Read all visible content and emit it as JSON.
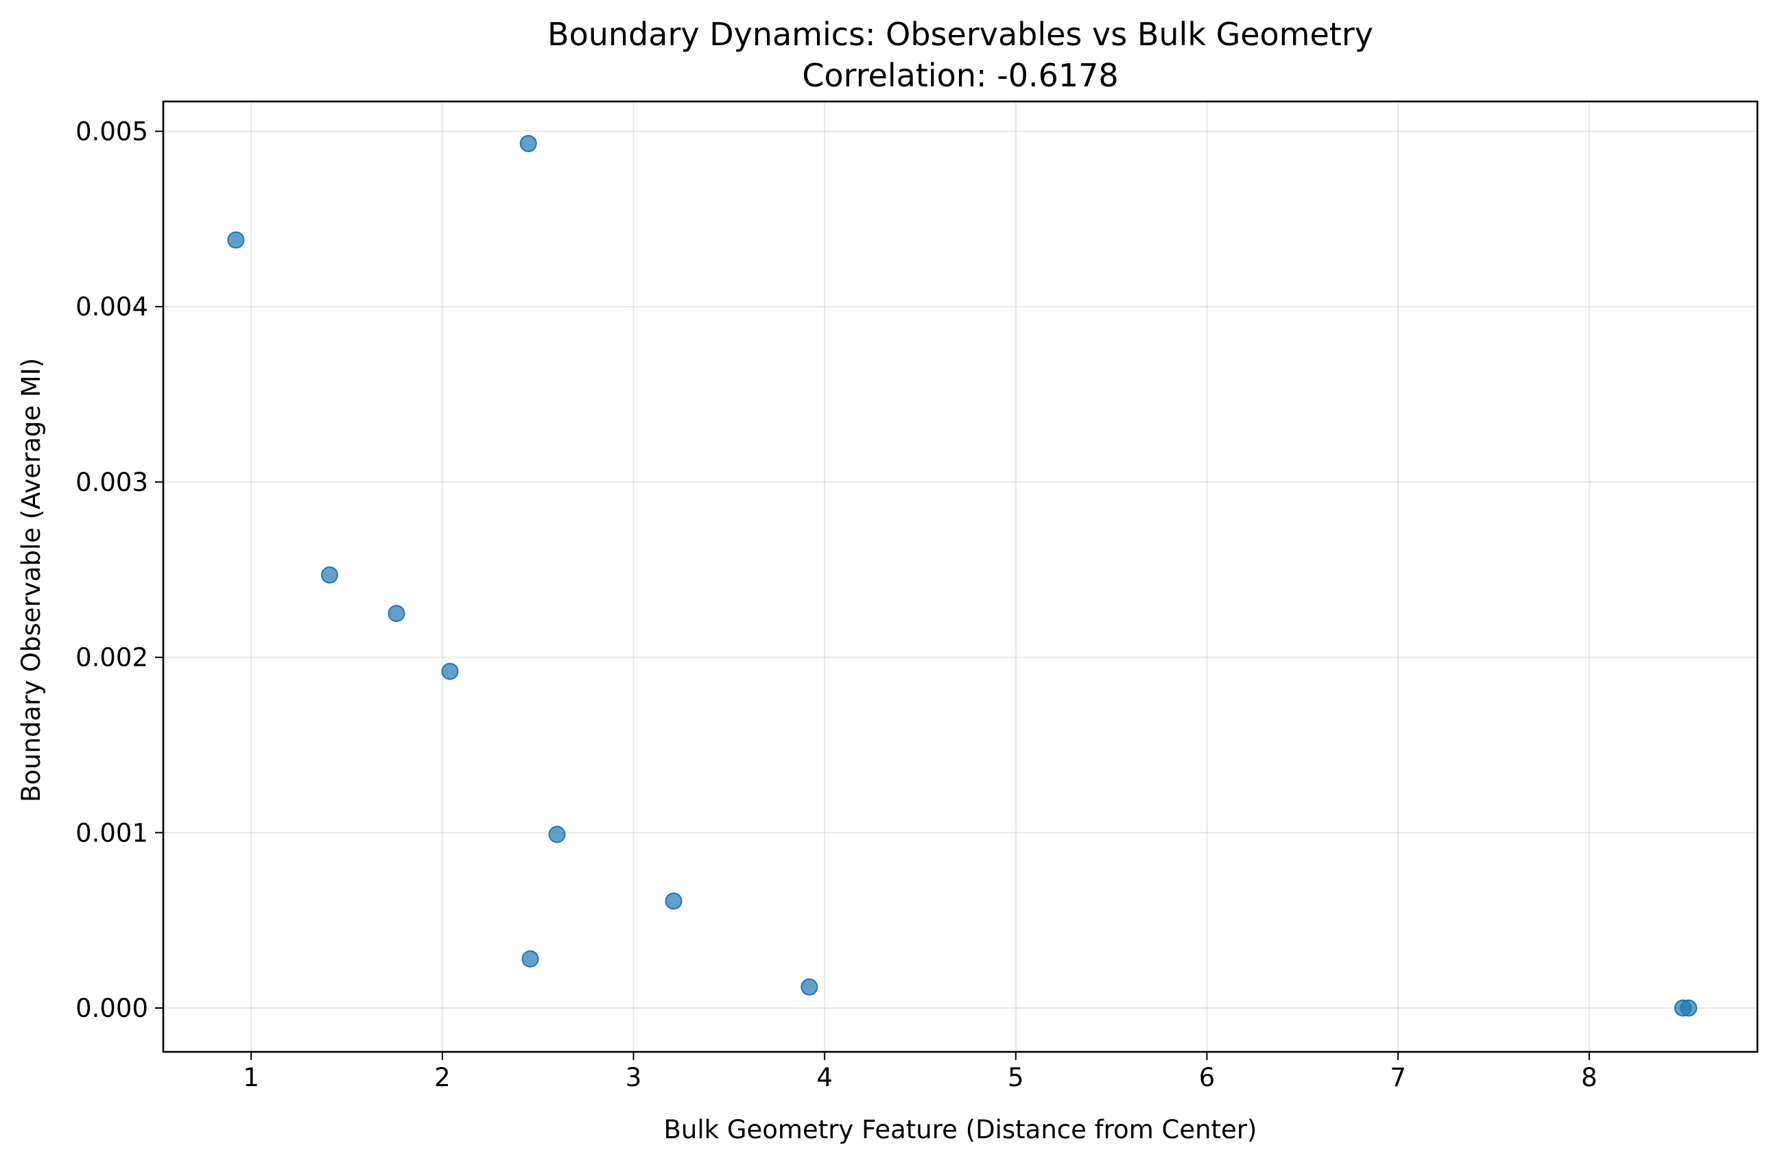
{
  "chart_data": {
    "type": "scatter",
    "title": "Boundary Dynamics: Observables vs Bulk Geometry",
    "subtitle": "Correlation: -0.6178",
    "xlabel": "Bulk Geometry Feature (Distance from Center)",
    "ylabel": "Boundary Observable (Average MI)",
    "xlim": [
      0.54,
      8.88
    ],
    "ylim": [
      -0.00025,
      0.00517
    ],
    "xticks": [
      1,
      2,
      3,
      4,
      5,
      6,
      7,
      8
    ],
    "xtick_labels": [
      "1",
      "2",
      "3",
      "4",
      "5",
      "6",
      "7",
      "8"
    ],
    "yticks": [
      0,
      0.001,
      0.002,
      0.003,
      0.004,
      0.005
    ],
    "ytick_labels": [
      "0.000",
      "0.001",
      "0.002",
      "0.003",
      "0.004",
      "0.005"
    ],
    "grid": true,
    "marker_color": "#1f77b4",
    "marker_opacity": 0.7,
    "points": [
      {
        "x": 0.92,
        "y": 0.00438
      },
      {
        "x": 1.41,
        "y": 0.00247
      },
      {
        "x": 1.76,
        "y": 0.00225
      },
      {
        "x": 2.04,
        "y": 0.00192
      },
      {
        "x": 2.45,
        "y": 0.00493
      },
      {
        "x": 2.46,
        "y": 0.00028
      },
      {
        "x": 2.6,
        "y": 0.00099
      },
      {
        "x": 3.21,
        "y": 0.00061
      },
      {
        "x": 3.92,
        "y": 0.00012
      },
      {
        "x": 8.49,
        "y": 0.0
      },
      {
        "x": 8.52,
        "y": 0.0
      }
    ]
  }
}
